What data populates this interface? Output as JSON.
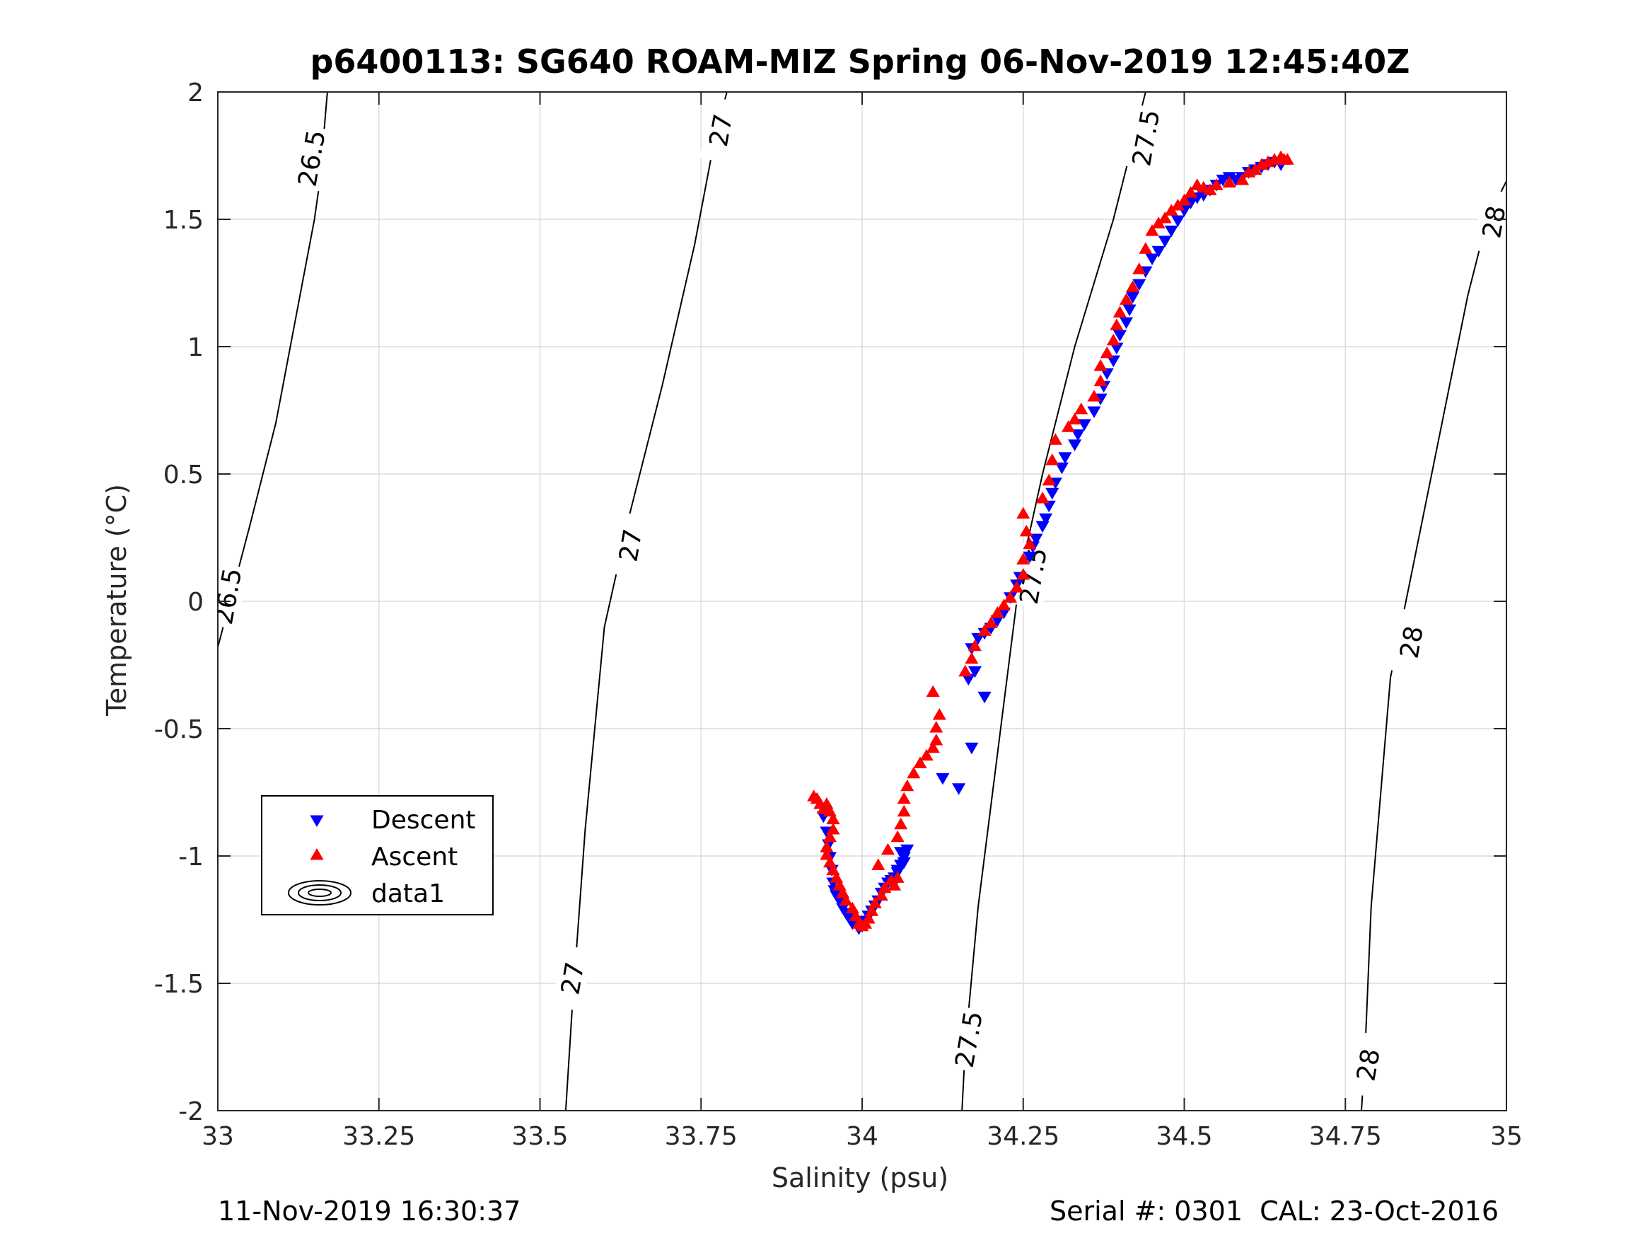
{
  "footer": {
    "left": "11-Nov-2019 16:30:37",
    "right": "Serial #: 0301  CAL: 23-Oct-2016"
  },
  "chart_data": {
    "type": "scatter",
    "title": "p6400113: SG640 ROAM-MIZ Spring 06-Nov-2019 12:45:40Z",
    "xlabel": "Salinity (psu)",
    "ylabel": "Temperature (°C)",
    "xlim": [
      33,
      35
    ],
    "ylim": [
      -2,
      2
    ],
    "xticks": [
      33,
      33.25,
      33.5,
      33.75,
      34,
      34.25,
      34.5,
      34.75,
      35
    ],
    "xtick_labels": [
      "33",
      "33.25",
      "33.5",
      "33.75",
      "34",
      "34.25",
      "34.5",
      "34.75",
      "35"
    ],
    "yticks": [
      -2,
      -1.5,
      -1,
      -0.5,
      0,
      0.5,
      1,
      1.5,
      2
    ],
    "ytick_labels": [
      "-2",
      "-1.5",
      "-1",
      "-0.5",
      "0",
      "0.5",
      "1",
      "1.5",
      "2"
    ],
    "grid": true,
    "legend_position": "lower-left",
    "colors": {
      "descent": "#0000ff",
      "ascent": "#ff0000",
      "axis": "#262626",
      "grid": "#dcdcdc",
      "contour": "#000000"
    },
    "series": [
      {
        "name": "Descent",
        "marker": "triangle-down",
        "color": "#0000ff",
        "points": [
          [
            33.94,
            -0.84
          ],
          [
            33.945,
            -0.9
          ],
          [
            33.948,
            -0.95
          ],
          [
            33.95,
            -1.0
          ],
          [
            33.953,
            -1.05
          ],
          [
            33.955,
            -1.1
          ],
          [
            33.957,
            -1.13
          ],
          [
            33.96,
            -1.15
          ],
          [
            33.965,
            -1.17
          ],
          [
            33.97,
            -1.2
          ],
          [
            33.975,
            -1.22
          ],
          [
            33.98,
            -1.24
          ],
          [
            33.985,
            -1.26
          ],
          [
            33.99,
            -1.25
          ],
          [
            33.995,
            -1.28
          ],
          [
            34.0,
            -1.27
          ],
          [
            34.005,
            -1.25
          ],
          [
            34.01,
            -1.23
          ],
          [
            34.015,
            -1.21
          ],
          [
            34.02,
            -1.19
          ],
          [
            34.025,
            -1.17
          ],
          [
            34.03,
            -1.14
          ],
          [
            34.035,
            -1.12
          ],
          [
            34.04,
            -1.1
          ],
          [
            34.045,
            -1.09
          ],
          [
            34.05,
            -1.08
          ],
          [
            34.055,
            -1.06
          ],
          [
            34.06,
            -1.03
          ],
          [
            34.065,
            -1.0
          ],
          [
            34.07,
            -0.97
          ],
          [
            34.06,
            -0.98
          ],
          [
            34.065,
            -1.02
          ],
          [
            34.055,
            -1.05
          ],
          [
            34.05,
            -1.1
          ],
          [
            34.125,
            -0.69
          ],
          [
            34.15,
            -0.73
          ],
          [
            34.17,
            -0.57
          ],
          [
            34.19,
            -0.37
          ],
          [
            34.175,
            -0.27
          ],
          [
            34.165,
            -0.3
          ],
          [
            34.17,
            -0.18
          ],
          [
            34.18,
            -0.14
          ],
          [
            34.19,
            -0.12
          ],
          [
            34.2,
            -0.1
          ],
          [
            34.21,
            -0.07
          ],
          [
            34.22,
            -0.04
          ],
          [
            34.23,
            0.02
          ],
          [
            34.24,
            0.07
          ],
          [
            34.245,
            0.1
          ],
          [
            34.26,
            0.18
          ],
          [
            34.265,
            0.22
          ],
          [
            34.27,
            0.25
          ],
          [
            34.28,
            0.3
          ],
          [
            34.285,
            0.33
          ],
          [
            34.29,
            0.38
          ],
          [
            34.295,
            0.43
          ],
          [
            34.3,
            0.47
          ],
          [
            34.31,
            0.53
          ],
          [
            34.315,
            0.57
          ],
          [
            34.33,
            0.62
          ],
          [
            34.335,
            0.66
          ],
          [
            34.345,
            0.7
          ],
          [
            34.36,
            0.75
          ],
          [
            34.37,
            0.8
          ],
          [
            34.375,
            0.85
          ],
          [
            34.38,
            0.9
          ],
          [
            34.39,
            0.95
          ],
          [
            34.395,
            1.0
          ],
          [
            34.4,
            1.05
          ],
          [
            34.41,
            1.1
          ],
          [
            34.415,
            1.15
          ],
          [
            34.42,
            1.2
          ],
          [
            34.43,
            1.25
          ],
          [
            34.44,
            1.3
          ],
          [
            34.45,
            1.35
          ],
          [
            34.46,
            1.38
          ],
          [
            34.47,
            1.42
          ],
          [
            34.48,
            1.46
          ],
          [
            34.49,
            1.5
          ],
          [
            34.5,
            1.54
          ],
          [
            34.51,
            1.57
          ],
          [
            34.52,
            1.59
          ],
          [
            34.53,
            1.6
          ],
          [
            34.54,
            1.62
          ],
          [
            34.55,
            1.64
          ],
          [
            34.56,
            1.66
          ],
          [
            34.57,
            1.67
          ],
          [
            34.58,
            1.66
          ],
          [
            34.59,
            1.67
          ],
          [
            34.6,
            1.69
          ],
          [
            34.61,
            1.7
          ],
          [
            34.62,
            1.71
          ],
          [
            34.63,
            1.72
          ],
          [
            34.64,
            1.73
          ],
          [
            34.65,
            1.72
          ]
        ]
      },
      {
        "name": "Ascent",
        "marker": "triangle-up",
        "color": "#ff0000",
        "points": [
          [
            33.925,
            -0.77
          ],
          [
            33.93,
            -0.78
          ],
          [
            33.935,
            -0.8
          ],
          [
            33.94,
            -0.82
          ],
          [
            33.945,
            -0.8
          ],
          [
            33.95,
            -0.83
          ],
          [
            33.955,
            -0.86
          ],
          [
            33.955,
            -0.9
          ],
          [
            33.95,
            -0.93
          ],
          [
            33.945,
            -0.97
          ],
          [
            33.945,
            -1.0
          ],
          [
            33.95,
            -1.03
          ],
          [
            33.955,
            -1.06
          ],
          [
            33.96,
            -1.09
          ],
          [
            33.965,
            -1.12
          ],
          [
            33.97,
            -1.15
          ],
          [
            33.975,
            -1.18
          ],
          [
            33.985,
            -1.21
          ],
          [
            33.99,
            -1.24
          ],
          [
            33.995,
            -1.27
          ],
          [
            34.0,
            -1.28
          ],
          [
            34.005,
            -1.27
          ],
          [
            34.01,
            -1.25
          ],
          [
            34.015,
            -1.22
          ],
          [
            34.02,
            -1.19
          ],
          [
            34.03,
            -1.16
          ],
          [
            34.035,
            -1.13
          ],
          [
            34.045,
            -1.1
          ],
          [
            34.05,
            -1.12
          ],
          [
            34.055,
            -1.09
          ],
          [
            34.025,
            -1.04
          ],
          [
            34.04,
            -0.98
          ],
          [
            34.055,
            -0.93
          ],
          [
            34.06,
            -0.88
          ],
          [
            34.065,
            -0.83
          ],
          [
            34.065,
            -0.78
          ],
          [
            34.07,
            -0.73
          ],
          [
            34.08,
            -0.68
          ],
          [
            34.09,
            -0.64
          ],
          [
            34.1,
            -0.61
          ],
          [
            34.11,
            -0.58
          ],
          [
            34.115,
            -0.55
          ],
          [
            34.115,
            -0.5
          ],
          [
            34.12,
            -0.45
          ],
          [
            34.11,
            -0.36
          ],
          [
            34.16,
            -0.28
          ],
          [
            34.17,
            -0.23
          ],
          [
            34.175,
            -0.18
          ],
          [
            34.19,
            -0.12
          ],
          [
            34.2,
            -0.09
          ],
          [
            34.21,
            -0.05
          ],
          [
            34.22,
            -0.02
          ],
          [
            34.23,
            0.01
          ],
          [
            34.24,
            0.05
          ],
          [
            34.25,
            0.1
          ],
          [
            34.25,
            0.16
          ],
          [
            34.26,
            0.22
          ],
          [
            34.255,
            0.27
          ],
          [
            34.25,
            0.34
          ],
          [
            34.28,
            0.4
          ],
          [
            34.29,
            0.47
          ],
          [
            34.295,
            0.55
          ],
          [
            34.3,
            0.63
          ],
          [
            34.32,
            0.68
          ],
          [
            34.33,
            0.71
          ],
          [
            34.34,
            0.75
          ],
          [
            34.36,
            0.8
          ],
          [
            34.37,
            0.86
          ],
          [
            34.37,
            0.92
          ],
          [
            34.38,
            0.97
          ],
          [
            34.39,
            1.02
          ],
          [
            34.395,
            1.08
          ],
          [
            34.4,
            1.13
          ],
          [
            34.41,
            1.18
          ],
          [
            34.42,
            1.23
          ],
          [
            34.43,
            1.3
          ],
          [
            34.44,
            1.38
          ],
          [
            34.45,
            1.45
          ],
          [
            34.46,
            1.48
          ],
          [
            34.47,
            1.5
          ],
          [
            34.48,
            1.53
          ],
          [
            34.49,
            1.55
          ],
          [
            34.5,
            1.57
          ],
          [
            34.51,
            1.6
          ],
          [
            34.52,
            1.63
          ],
          [
            34.53,
            1.62
          ],
          [
            34.54,
            1.61
          ],
          [
            34.55,
            1.63
          ],
          [
            34.57,
            1.64
          ],
          [
            34.59,
            1.65
          ],
          [
            34.6,
            1.68
          ],
          [
            34.61,
            1.69
          ],
          [
            34.62,
            1.71
          ],
          [
            34.63,
            1.72
          ],
          [
            34.64,
            1.73
          ],
          [
            34.65,
            1.74
          ],
          [
            34.655,
            1.73
          ],
          [
            34.66,
            1.73
          ]
        ]
      }
    ],
    "contours": {
      "legend_label": "data1",
      "levels": [
        {
          "level": "26.5",
          "points": [
            [
              33.0,
              -0.18
            ],
            [
              33.05,
              0.3
            ],
            [
              33.09,
              0.7
            ],
            [
              33.12,
              1.1
            ],
            [
              33.15,
              1.5
            ],
            [
              33.16,
              1.68
            ],
            [
              33.165,
              1.85
            ],
            [
              33.17,
              2.0
            ]
          ],
          "labels": [
            {
              "text": "26.5",
              "x": 33.015,
              "y": 0.02
            },
            {
              "text": "26.5",
              "x": 33.145,
              "y": 1.74
            }
          ]
        },
        {
          "level": "27",
          "points": [
            [
              33.54,
              -2.0
            ],
            [
              33.55,
              -1.6
            ],
            [
              33.57,
              -0.9
            ],
            [
              33.6,
              -0.1
            ],
            [
              33.64,
              0.35
            ],
            [
              33.69,
              0.85
            ],
            [
              33.74,
              1.4
            ],
            [
              33.77,
              1.8
            ],
            [
              33.79,
              2.0
            ]
          ],
          "labels": [
            {
              "text": "27",
              "x": 33.55,
              "y": -1.48
            },
            {
              "text": "27",
              "x": 33.64,
              "y": 0.22
            },
            {
              "text": "27",
              "x": 33.78,
              "y": 1.85
            }
          ]
        },
        {
          "level": "27.5",
          "points": [
            [
              34.155,
              -2.0
            ],
            [
              34.16,
              -1.75
            ],
            [
              34.18,
              -1.2
            ],
            [
              34.21,
              -0.6
            ],
            [
              34.23,
              -0.2
            ],
            [
              34.245,
              0.1
            ],
            [
              34.28,
              0.5
            ],
            [
              34.33,
              1.0
            ],
            [
              34.39,
              1.5
            ],
            [
              34.42,
              1.8
            ],
            [
              34.44,
              2.0
            ]
          ],
          "labels": [
            {
              "text": "27.5",
              "x": 34.165,
              "y": -1.72
            },
            {
              "text": "27.5",
              "x": 34.265,
              "y": 0.1
            },
            {
              "text": "27.5",
              "x": 34.44,
              "y": 1.82
            }
          ]
        },
        {
          "level": "28",
          "points": [
            [
              34.775,
              -2.0
            ],
            [
              34.78,
              -1.8
            ],
            [
              34.79,
              -1.2
            ],
            [
              34.82,
              -0.3
            ],
            [
              34.86,
              0.2
            ],
            [
              34.9,
              0.7
            ],
            [
              34.94,
              1.2
            ],
            [
              34.97,
              1.5
            ],
            [
              35.0,
              1.65
            ]
          ],
          "labels": [
            {
              "text": "28",
              "x": 34.785,
              "y": -1.82
            },
            {
              "text": "28",
              "x": 34.852,
              "y": -0.16
            },
            {
              "text": "28",
              "x": 34.98,
              "y": 1.49
            }
          ]
        }
      ]
    },
    "legend": [
      {
        "label": "Descent",
        "marker": "triangle-down",
        "color": "#0000ff"
      },
      {
        "label": "Ascent",
        "marker": "triangle-up",
        "color": "#ff0000"
      },
      {
        "label": "data1",
        "marker": "contour",
        "color": "#000000"
      }
    ]
  }
}
